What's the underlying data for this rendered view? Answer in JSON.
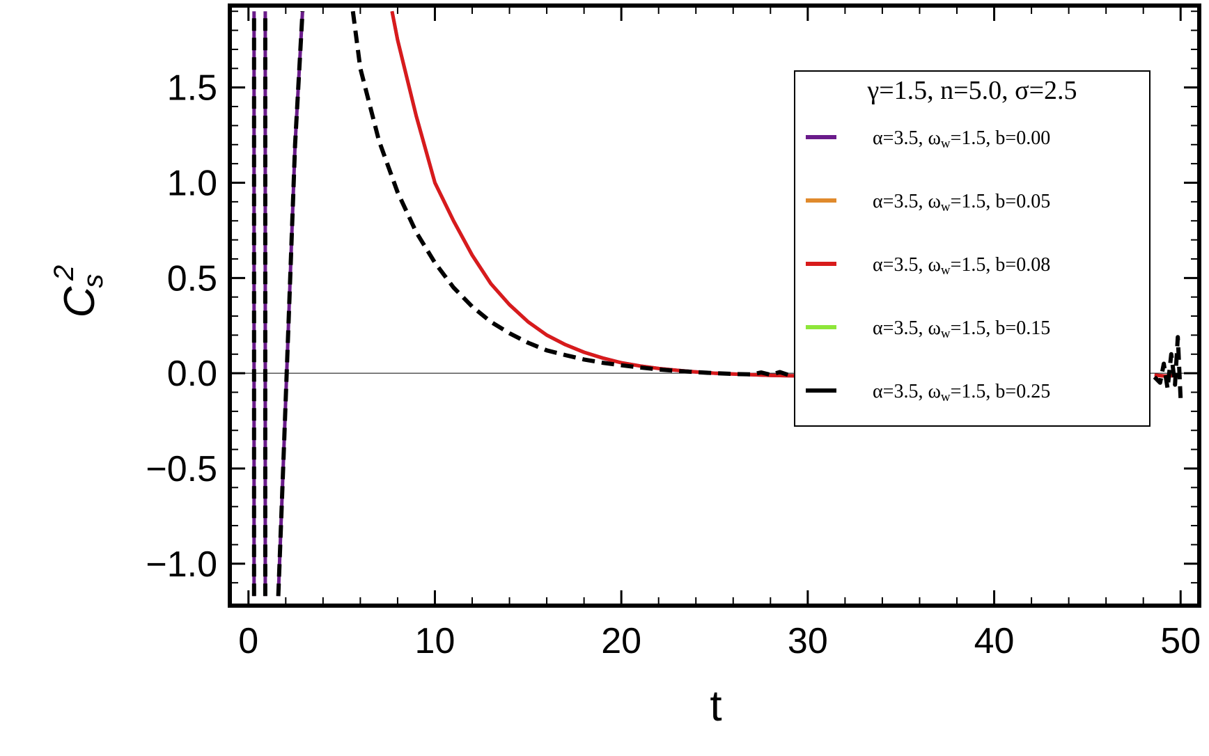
{
  "chart_data": {
    "type": "line",
    "xlabel": "t",
    "ylabel": "C",
    "ylabel_sup": "2",
    "ylabel_sub": "s",
    "xlim": [
      -1,
      51
    ],
    "ylim": [
      -1.22,
      1.93
    ],
    "xticks": [
      0,
      10,
      20,
      30,
      40,
      50
    ],
    "yticks": [
      -1.0,
      -0.5,
      0.0,
      0.5,
      1.0,
      1.5
    ],
    "ytick_labels": [
      "−1.0",
      "−0.5",
      "0.0",
      "0.5",
      "1.0",
      "1.5"
    ],
    "grid": false,
    "legend": {
      "placement": "top-right",
      "title": "γ=1.5, n=5.0, σ=2.5"
    },
    "series": [
      {
        "name": "α=3.5, ωw=1.5, b=0.00",
        "label_parts": [
          "α=3.5, ω",
          "w",
          "=1.5, b=0.00"
        ],
        "color": "#6a1b8a",
        "dashed": false,
        "segments": [
          [
            [
              0.3,
              -1.17
            ],
            [
              0.3,
              1.9
            ]
          ],
          [
            [
              0.9,
              -1.17
            ],
            [
              0.9,
              1.9
            ]
          ],
          [
            [
              1.6,
              -1.17
            ],
            [
              1.9,
              -0.4
            ],
            [
              2.2,
              0.4
            ],
            [
              2.5,
              1.2
            ],
            [
              2.9,
              1.9
            ]
          ],
          [
            [
              7.7,
              1.9
            ],
            [
              8.0,
              1.75
            ],
            [
              9.0,
              1.35
            ],
            [
              10.0,
              1.0
            ],
            [
              11.0,
              0.8
            ],
            [
              12.0,
              0.62
            ],
            [
              13.0,
              0.47
            ],
            [
              14.0,
              0.36
            ],
            [
              15.0,
              0.27
            ],
            [
              16.0,
              0.2
            ],
            [
              17.0,
              0.15
            ],
            [
              18.0,
              0.11
            ],
            [
              19.0,
              0.08
            ],
            [
              20.0,
              0.055
            ],
            [
              21.0,
              0.038
            ],
            [
              22.0,
              0.025
            ],
            [
              23.0,
              0.015
            ],
            [
              24.0,
              0.007
            ],
            [
              25.0,
              0.0
            ],
            [
              26.0,
              -0.004
            ],
            [
              27.0,
              -0.008
            ],
            [
              28.0,
              -0.011
            ],
            [
              29.0,
              -0.013
            ],
            [
              30.0,
              -0.014
            ],
            [
              31.0,
              -0.014
            ],
            [
              33.0,
              -0.013
            ]
          ],
          [
            [
              48.6,
              -0.01
            ],
            [
              49.2,
              -0.015
            ],
            [
              50.0,
              -0.01
            ]
          ]
        ]
      },
      {
        "name": "α=3.5, ωw=1.5, b=0.05",
        "label_parts": [
          "α=3.5, ω",
          "w",
          "=1.5, b=0.05"
        ],
        "color": "#e08a2c",
        "dashed": false,
        "segments": []
      },
      {
        "name": "α=3.5, ωw=1.5, b=0.08",
        "label_parts": [
          "α=3.5, ω",
          "w",
          "=1.5, b=0.08"
        ],
        "color": "#d81b1b",
        "dashed": false,
        "segments": [
          [
            [
              7.7,
              1.9
            ],
            [
              8.0,
              1.75
            ],
            [
              9.0,
              1.35
            ],
            [
              10.0,
              1.0
            ],
            [
              11.0,
              0.8
            ],
            [
              12.0,
              0.62
            ],
            [
              13.0,
              0.47
            ],
            [
              14.0,
              0.36
            ],
            [
              15.0,
              0.27
            ],
            [
              16.0,
              0.2
            ],
            [
              17.0,
              0.15
            ],
            [
              18.0,
              0.11
            ],
            [
              19.0,
              0.08
            ],
            [
              20.0,
              0.055
            ],
            [
              21.0,
              0.038
            ],
            [
              22.0,
              0.025
            ],
            [
              23.0,
              0.015
            ],
            [
              24.0,
              0.007
            ],
            [
              25.0,
              0.0
            ],
            [
              26.0,
              -0.004
            ],
            [
              27.0,
              -0.008
            ],
            [
              28.0,
              -0.011
            ],
            [
              29.0,
              -0.013
            ],
            [
              30.0,
              -0.014
            ],
            [
              31.0,
              -0.014
            ],
            [
              33.0,
              -0.013
            ]
          ],
          [
            [
              48.6,
              -0.01
            ],
            [
              49.2,
              -0.015
            ],
            [
              50.0,
              -0.01
            ]
          ]
        ]
      },
      {
        "name": "α=3.5, ωw=1.5, b=0.15",
        "label_parts": [
          "α=3.5, ω",
          "w",
          "=1.5, b=0.15"
        ],
        "color": "#8ee63a",
        "dashed": false,
        "segments": []
      },
      {
        "name": "α=3.5, ωw=1.5, b=0.25",
        "label_parts": [
          "α=3.5, ω",
          "w",
          "=1.5, b=0.25"
        ],
        "color": "#000000",
        "dashed": true,
        "segments": [
          [
            [
              0.3,
              -1.17
            ],
            [
              0.3,
              1.9
            ]
          ],
          [
            [
              0.9,
              -1.17
            ],
            [
              0.9,
              1.9
            ]
          ],
          [
            [
              1.6,
              -1.17
            ],
            [
              1.9,
              -0.4
            ],
            [
              2.2,
              0.4
            ],
            [
              2.5,
              1.2
            ],
            [
              2.9,
              1.9
            ]
          ],
          [
            [
              5.6,
              1.9
            ],
            [
              6.0,
              1.6
            ],
            [
              7.0,
              1.22
            ],
            [
              8.0,
              0.95
            ],
            [
              9.0,
              0.74
            ],
            [
              10.0,
              0.58
            ],
            [
              11.0,
              0.45
            ],
            [
              12.0,
              0.35
            ],
            [
              13.0,
              0.27
            ],
            [
              14.0,
              0.21
            ],
            [
              15.0,
              0.16
            ],
            [
              16.0,
              0.12
            ],
            [
              17.0,
              0.095
            ],
            [
              18.0,
              0.072
            ],
            [
              19.0,
              0.055
            ],
            [
              20.0,
              0.042
            ],
            [
              21.0,
              0.03
            ],
            [
              22.0,
              0.02
            ],
            [
              23.0,
              0.012
            ],
            [
              24.0,
              0.006
            ],
            [
              25.0,
              0.0
            ],
            [
              26.0,
              -0.004
            ],
            [
              27.0,
              -0.006
            ],
            [
              27.5,
              0.004
            ],
            [
              28.0,
              -0.008
            ],
            [
              28.5,
              0.006
            ],
            [
              29.0,
              -0.01
            ],
            [
              29.5,
              0.008
            ],
            [
              30.0,
              -0.008
            ],
            [
              31.0,
              -0.005
            ],
            [
              32.0,
              -0.004
            ],
            [
              33.0,
              -0.004
            ]
          ],
          [
            [
              48.6,
              -0.02
            ],
            [
              48.9,
              -0.05
            ],
            [
              49.1,
              0.05
            ],
            [
              49.3,
              -0.08
            ],
            [
              49.5,
              0.1
            ],
            [
              49.7,
              -0.06
            ],
            [
              49.85,
              0.19
            ],
            [
              50.0,
              -0.13
            ]
          ]
        ]
      }
    ]
  }
}
